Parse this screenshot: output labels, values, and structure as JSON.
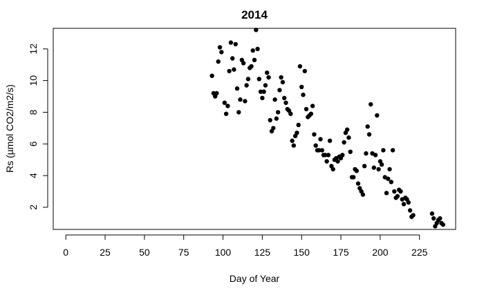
{
  "chart_data": {
    "type": "scatter",
    "title": "2014",
    "xlabel": "Day of Year",
    "ylabel": "Rs (µmol CO2/m2/s)",
    "xlim": [
      -8,
      248
    ],
    "ylim": [
      0.6,
      13.3
    ],
    "xticks": [
      0,
      25,
      50,
      75,
      100,
      125,
      150,
      175,
      200,
      225
    ],
    "yticks": [
      2,
      4,
      6,
      8,
      10,
      12
    ],
    "marker_color": "#000000",
    "points": [
      {
        "x": 93,
        "y": 10.3
      },
      {
        "x": 94,
        "y": 9.2
      },
      {
        "x": 95,
        "y": 9.0
      },
      {
        "x": 96,
        "y": 9.2
      },
      {
        "x": 97,
        "y": 11.2
      },
      {
        "x": 98,
        "y": 12.1
      },
      {
        "x": 99,
        "y": 11.8
      },
      {
        "x": 101,
        "y": 8.6
      },
      {
        "x": 102,
        "y": 7.9
      },
      {
        "x": 103,
        "y": 8.4
      },
      {
        "x": 104,
        "y": 10.6
      },
      {
        "x": 105,
        "y": 12.4
      },
      {
        "x": 106,
        "y": 11.4
      },
      {
        "x": 107,
        "y": 10.7
      },
      {
        "x": 108,
        "y": 12.3
      },
      {
        "x": 109,
        "y": 9.5
      },
      {
        "x": 110,
        "y": 8.0
      },
      {
        "x": 111,
        "y": 8.8
      },
      {
        "x": 112,
        "y": 11.3
      },
      {
        "x": 113,
        "y": 11.1
      },
      {
        "x": 114,
        "y": 8.7
      },
      {
        "x": 115,
        "y": 9.7
      },
      {
        "x": 116,
        "y": 10.1
      },
      {
        "x": 117,
        "y": 10.8
      },
      {
        "x": 118,
        "y": 10.9
      },
      {
        "x": 119,
        "y": 11.9
      },
      {
        "x": 120,
        "y": 11.3
      },
      {
        "x": 121,
        "y": 13.2
      },
      {
        "x": 122,
        "y": 12.0
      },
      {
        "x": 123,
        "y": 10.1
      },
      {
        "x": 124,
        "y": 9.3
      },
      {
        "x": 125,
        "y": 8.9
      },
      {
        "x": 126,
        "y": 9.3
      },
      {
        "x": 127,
        "y": 9.7
      },
      {
        "x": 128,
        "y": 10.5
      },
      {
        "x": 129,
        "y": 10.2
      },
      {
        "x": 130,
        "y": 7.5
      },
      {
        "x": 131,
        "y": 6.8
      },
      {
        "x": 132,
        "y": 7.0
      },
      {
        "x": 133,
        "y": 8.8
      },
      {
        "x": 134,
        "y": 7.6
      },
      {
        "x": 135,
        "y": 8.0
      },
      {
        "x": 136,
        "y": 9.4
      },
      {
        "x": 137,
        "y": 10.2
      },
      {
        "x": 138,
        "y": 9.9
      },
      {
        "x": 139,
        "y": 8.9
      },
      {
        "x": 140,
        "y": 8.6
      },
      {
        "x": 141,
        "y": 8.2
      },
      {
        "x": 142,
        "y": 8.1
      },
      {
        "x": 143,
        "y": 7.9
      },
      {
        "x": 144,
        "y": 6.2
      },
      {
        "x": 145,
        "y": 5.9
      },
      {
        "x": 146,
        "y": 6.5
      },
      {
        "x": 147,
        "y": 6.7
      },
      {
        "x": 148,
        "y": 7.2
      },
      {
        "x": 149,
        "y": 10.9
      },
      {
        "x": 150,
        "y": 9.6
      },
      {
        "x": 151,
        "y": 9.1
      },
      {
        "x": 152,
        "y": 10.6
      },
      {
        "x": 153,
        "y": 8.2
      },
      {
        "x": 154,
        "y": 7.7
      },
      {
        "x": 155,
        "y": 7.8
      },
      {
        "x": 156,
        "y": 7.9
      },
      {
        "x": 157,
        "y": 8.4
      },
      {
        "x": 158,
        "y": 6.6
      },
      {
        "x": 159,
        "y": 5.9
      },
      {
        "x": 160,
        "y": 5.6
      },
      {
        "x": 161,
        "y": 5.6
      },
      {
        "x": 162,
        "y": 6.3
      },
      {
        "x": 163,
        "y": 5.6
      },
      {
        "x": 164,
        "y": 5.3
      },
      {
        "x": 165,
        "y": 5.3
      },
      {
        "x": 166,
        "y": 4.9
      },
      {
        "x": 167,
        "y": 5.3
      },
      {
        "x": 168,
        "y": 6.2
      },
      {
        "x": 169,
        "y": 4.6
      },
      {
        "x": 170,
        "y": 4.4
      },
      {
        "x": 171,
        "y": 5.0
      },
      {
        "x": 172,
        "y": 5.1
      },
      {
        "x": 173,
        "y": 4.9
      },
      {
        "x": 174,
        "y": 5.2
      },
      {
        "x": 175,
        "y": 5.1
      },
      {
        "x": 176,
        "y": 5.3
      },
      {
        "x": 177,
        "y": 6.1
      },
      {
        "x": 178,
        "y": 6.7
      },
      {
        "x": 179,
        "y": 6.9
      },
      {
        "x": 180,
        "y": 6.4
      },
      {
        "x": 181,
        "y": 5.5
      },
      {
        "x": 182,
        "y": 3.9
      },
      {
        "x": 183,
        "y": 3.9
      },
      {
        "x": 184,
        "y": 4.4
      },
      {
        "x": 185,
        "y": 4.3
      },
      {
        "x": 186,
        "y": 3.5
      },
      {
        "x": 187,
        "y": 3.2
      },
      {
        "x": 188,
        "y": 3.0
      },
      {
        "x": 189,
        "y": 2.8
      },
      {
        "x": 190,
        "y": 4.6
      },
      {
        "x": 191,
        "y": 5.4
      },
      {
        "x": 192,
        "y": 7.1
      },
      {
        "x": 193,
        "y": 6.6
      },
      {
        "x": 194,
        "y": 8.5
      },
      {
        "x": 195,
        "y": 5.4
      },
      {
        "x": 196,
        "y": 4.5
      },
      {
        "x": 197,
        "y": 5.3
      },
      {
        "x": 198,
        "y": 7.8
      },
      {
        "x": 199,
        "y": 4.4
      },
      {
        "x": 200,
        "y": 4.9
      },
      {
        "x": 201,
        "y": 4.7
      },
      {
        "x": 202,
        "y": 5.6
      },
      {
        "x": 203,
        "y": 3.9
      },
      {
        "x": 204,
        "y": 2.9
      },
      {
        "x": 205,
        "y": 3.8
      },
      {
        "x": 206,
        "y": 4.4
      },
      {
        "x": 207,
        "y": 3.6
      },
      {
        "x": 208,
        "y": 5.6
      },
      {
        "x": 209,
        "y": 3.0
      },
      {
        "x": 210,
        "y": 2.6
      },
      {
        "x": 211,
        "y": 2.7
      },
      {
        "x": 212,
        "y": 3.1
      },
      {
        "x": 213,
        "y": 3.0
      },
      {
        "x": 214,
        "y": 2.5
      },
      {
        "x": 215,
        "y": 2.2
      },
      {
        "x": 216,
        "y": 2.6
      },
      {
        "x": 217,
        "y": 2.5
      },
      {
        "x": 218,
        "y": 2.3
      },
      {
        "x": 219,
        "y": 1.8
      },
      {
        "x": 220,
        "y": 1.4
      },
      {
        "x": 221,
        "y": 1.5
      },
      {
        "x": 233,
        "y": 1.6
      },
      {
        "x": 234,
        "y": 1.3
      },
      {
        "x": 235,
        "y": 0.8
      },
      {
        "x": 236,
        "y": 1.0
      },
      {
        "x": 237,
        "y": 1.2
      },
      {
        "x": 238,
        "y": 1.3
      },
      {
        "x": 239,
        "y": 1.0
      },
      {
        "x": 240,
        "y": 0.9
      }
    ]
  }
}
